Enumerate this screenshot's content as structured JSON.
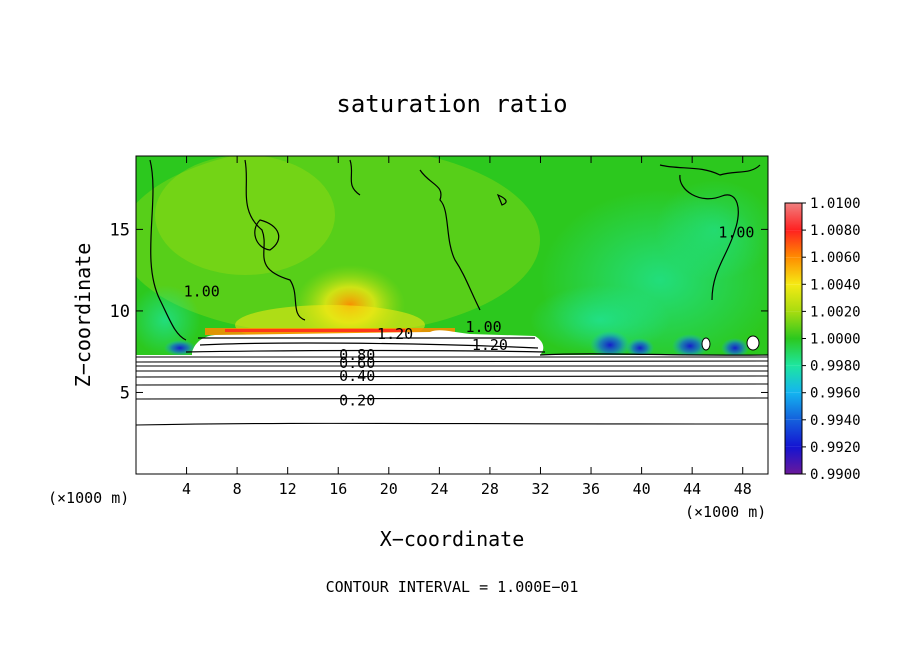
{
  "chart_data": {
    "type": "heatmap",
    "title": "saturation ratio",
    "xlabel": "X−coordinate",
    "ylabel": "Z−coordinate",
    "x_unit_left": "(×1000 m)",
    "x_unit_right": "(×1000 m)",
    "footer": "CONTOUR INTERVAL = 1.000E−01",
    "xlim": [
      0,
      50
    ],
    "ylim": [
      0,
      19.5
    ],
    "x_ticks": [
      4,
      8,
      12,
      16,
      20,
      24,
      28,
      32,
      36,
      40,
      44,
      48
    ],
    "y_ticks": [
      5,
      10,
      15
    ],
    "grid": false,
    "legend_position": "right",
    "colorbar": {
      "ticks": [
        "1.0100",
        "1.0080",
        "1.0060",
        "1.0040",
        "1.0020",
        "1.0000",
        "0.9980",
        "0.9960",
        "0.9940",
        "0.9920",
        "0.9900"
      ],
      "colors": [
        "#f08080",
        "#ff2020",
        "#ff8c00",
        "#f5ea14",
        "#a8dc10",
        "#2cc81e",
        "#1ee6a0",
        "#14b4f0",
        "#1460dc",
        "#1414d2",
        "#6a189a"
      ]
    },
    "contour_labels": [
      {
        "text": "1.20",
        "x": 20.5,
        "z": 8.6
      },
      {
        "text": "1.20",
        "x": 28.0,
        "z": 7.9
      },
      {
        "text": "1.00",
        "x": 5.2,
        "z": 11.2
      },
      {
        "text": "1.00",
        "x": 27.5,
        "z": 9.0
      },
      {
        "text": "1.00",
        "x": 47.5,
        "z": 14.8
      },
      {
        "text": "0.80",
        "x": 17.5,
        "z": 7.3
      },
      {
        "text": "0.60",
        "x": 17.5,
        "z": 6.8
      },
      {
        "text": "0.40",
        "x": 17.5,
        "z": 6.0
      },
      {
        "text": "0.20",
        "x": 17.5,
        "z": 4.5
      }
    ]
  }
}
